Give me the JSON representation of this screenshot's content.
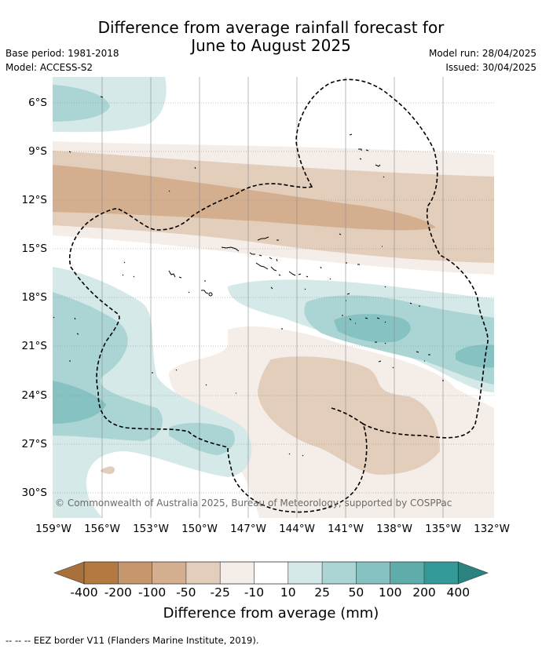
{
  "title_line1": "Difference from average rainfall forecast for",
  "title_line2": "June to August 2025",
  "meta_left": [
    "Base period: 1981-2018",
    "Model: ACCESS-S2"
  ],
  "meta_right": [
    "Model run: 28/04/2025",
    "Issued: 30/04/2025"
  ],
  "lat_labels": [
    "6°S",
    "9°S",
    "12°S",
    "15°S",
    "18°S",
    "21°S",
    "24°S",
    "27°S",
    "30°S"
  ],
  "lon_labels": [
    "159°W",
    "156°W",
    "153°W",
    "150°W",
    "147°W",
    "144°W",
    "141°W",
    "138°W",
    "135°W",
    "132°W"
  ],
  "copyright": "© Commonwealth of Australia 2025, Bureau of Meteorology, supported by COSPPac",
  "colorbar": {
    "labels": [
      "-400",
      "-200",
      "-100",
      "-50",
      "-25",
      "-10",
      "10",
      "25",
      "50",
      "100",
      "200",
      "400"
    ],
    "colors": [
      "#a8703a",
      "#b3793f",
      "#c6966c",
      "#d4af8f",
      "#e3cdbb",
      "#f4ede8",
      "#ffffff",
      "#d5e9e8",
      "#abd5d4",
      "#85c2c1",
      "#5fadab",
      "#349a98",
      "#2b8380"
    ],
    "title": "Difference from average (mm)"
  },
  "footnote": "-- -- -- EEZ border V11 (Flanders Marine Institute, 2019)."
}
